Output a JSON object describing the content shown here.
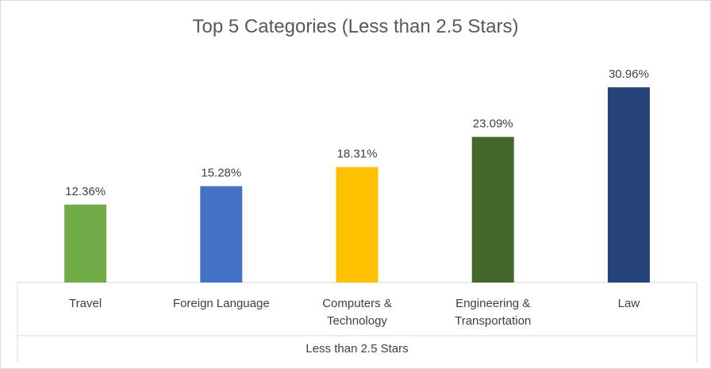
{
  "chart_data": {
    "type": "bar",
    "title": "Top 5 Categories (Less than 2.5 Stars)",
    "group_label": "Less than 2.5 Stars",
    "categories": [
      [
        "Travel"
      ],
      [
        "Foreign Language"
      ],
      [
        "Computers &",
        "Technology"
      ],
      [
        "Engineering &",
        "Transportation"
      ],
      [
        "Law"
      ]
    ],
    "values": [
      12.36,
      15.28,
      18.31,
      23.09,
      30.96
    ],
    "data_labels": [
      "12.36%",
      "15.28%",
      "18.31%",
      "23.09%",
      "30.96%"
    ],
    "colors": [
      "#70ad47",
      "#4472c4",
      "#ffc000",
      "#43682b",
      "#264478"
    ],
    "ylim": [
      0,
      35
    ],
    "grid": false,
    "legend": "none"
  }
}
